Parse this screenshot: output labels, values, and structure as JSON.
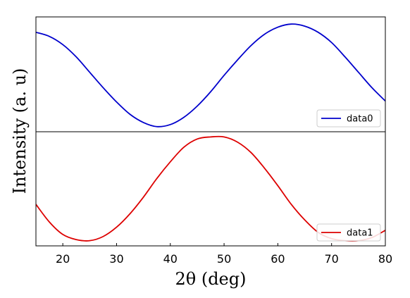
{
  "chart_data": {
    "type": "line",
    "xlabel": "2θ (deg)",
    "ylabel": "Intensity (a. u)",
    "xlim": [
      15,
      80
    ],
    "xticks": [
      20,
      30,
      40,
      50,
      60,
      70,
      80
    ],
    "legend_placement": "lower-right",
    "grid": false,
    "panels": [
      {
        "series": [
          {
            "name": "data0",
            "color": "#0000cc",
            "x": [
              15,
              17.5,
              20,
              22.5,
              25,
              27.5,
              30,
              32.5,
              35,
              37.5,
              40,
              42.5,
              45,
              47.5,
              50,
              52.5,
              55,
              57.5,
              60,
              62.5,
              65,
              67.5,
              70,
              72.5,
              75,
              77.5,
              80
            ],
            "y": [
              0.92,
              0.88,
              0.8,
              0.68,
              0.53,
              0.38,
              0.24,
              0.12,
              0.04,
              0.0,
              0.02,
              0.09,
              0.2,
              0.34,
              0.5,
              0.65,
              0.79,
              0.9,
              0.97,
              1.0,
              0.98,
              0.92,
              0.82,
              0.68,
              0.53,
              0.38,
              0.25
            ]
          }
        ],
        "ylim": [
          -0.05,
          1.07
        ]
      },
      {
        "series": [
          {
            "name": "data1",
            "color": "#dd0000",
            "x": [
              15,
              17.5,
              20,
              22.5,
              25,
              27.5,
              30,
              32.5,
              35,
              37.5,
              40,
              42.5,
              45,
              47.5,
              50,
              52.5,
              55,
              57.5,
              60,
              62.5,
              65,
              67.5,
              70,
              72.5,
              75,
              77.5,
              80
            ],
            "y": [
              0.35,
              0.18,
              0.06,
              0.01,
              0.0,
              0.04,
              0.13,
              0.26,
              0.42,
              0.6,
              0.76,
              0.9,
              0.98,
              1.0,
              1.0,
              0.95,
              0.85,
              0.7,
              0.53,
              0.35,
              0.2,
              0.08,
              0.02,
              0.0,
              0.0,
              0.03,
              0.1
            ]
          }
        ],
        "ylim": [
          -0.05,
          1.05
        ]
      }
    ]
  }
}
